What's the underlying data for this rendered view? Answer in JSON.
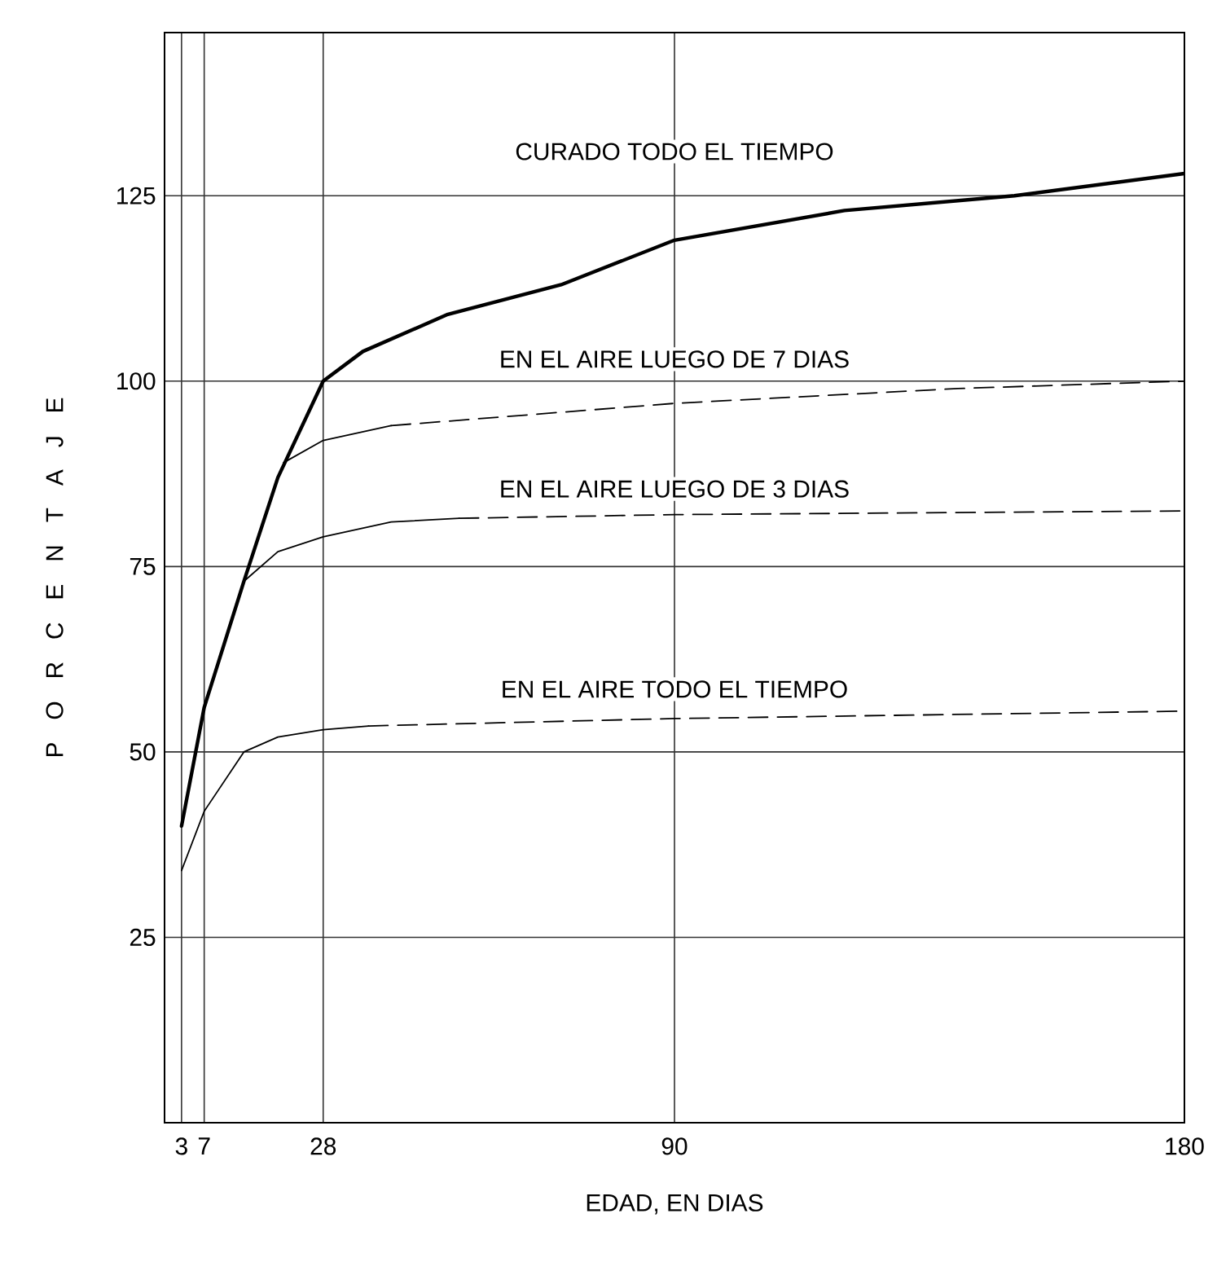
{
  "chart_data": {
    "type": "line",
    "xlabel": "EDAD, EN DIAS",
    "ylabel": "P O R C E N T A J E",
    "xlim": [
      0,
      180
    ],
    "ylim": [
      0,
      147
    ],
    "xticks": [
      3,
      7,
      28,
      90,
      180
    ],
    "yticks": [
      25,
      50,
      75,
      100,
      125
    ],
    "grid": true,
    "legend": false,
    "marker": "none",
    "line_style": "solid",
    "series": [
      {
        "name": "CURADO TODO EL TIEMPO",
        "color": "#000000",
        "x": [
          3,
          7,
          14,
          20,
          28,
          35,
          50,
          70,
          90,
          120,
          150,
          180
        ],
        "values": [
          40,
          56,
          73,
          87,
          100,
          104,
          109,
          113,
          119,
          123,
          125,
          128
        ]
      },
      {
        "color": "#000000",
        "x": [
          21,
          28,
          40
        ],
        "values": [
          89,
          92,
          94
        ]
      },
      {
        "name": "EN EL AIRE LUEGO DE 7 DIAS",
        "color": "#000000",
        "line_style": "dashed",
        "x": [
          40,
          90,
          140,
          180
        ],
        "values": [
          94,
          97,
          99,
          100
        ]
      },
      {
        "color": "#000000",
        "x": [
          14,
          20,
          28,
          40,
          52
        ],
        "values": [
          73,
          77,
          79,
          81,
          81.5
        ]
      },
      {
        "name": "EN EL AIRE LUEGO DE 3 DIAS",
        "color": "#000000",
        "line_style": "dashed",
        "x": [
          52,
          90,
          180
        ],
        "values": [
          81.5,
          82,
          82.5
        ]
      },
      {
        "color": "#000000",
        "x": [
          3,
          7,
          14,
          20,
          28,
          36
        ],
        "values": [
          34,
          42,
          50,
          52,
          53,
          53.5
        ]
      },
      {
        "name": "EN EL AIRE TODO EL TIEMPO",
        "color": "#000000",
        "line_style": "dashed",
        "x": [
          36,
          90,
          180
        ],
        "values": [
          53.5,
          54.5,
          55.5
        ]
      }
    ]
  }
}
